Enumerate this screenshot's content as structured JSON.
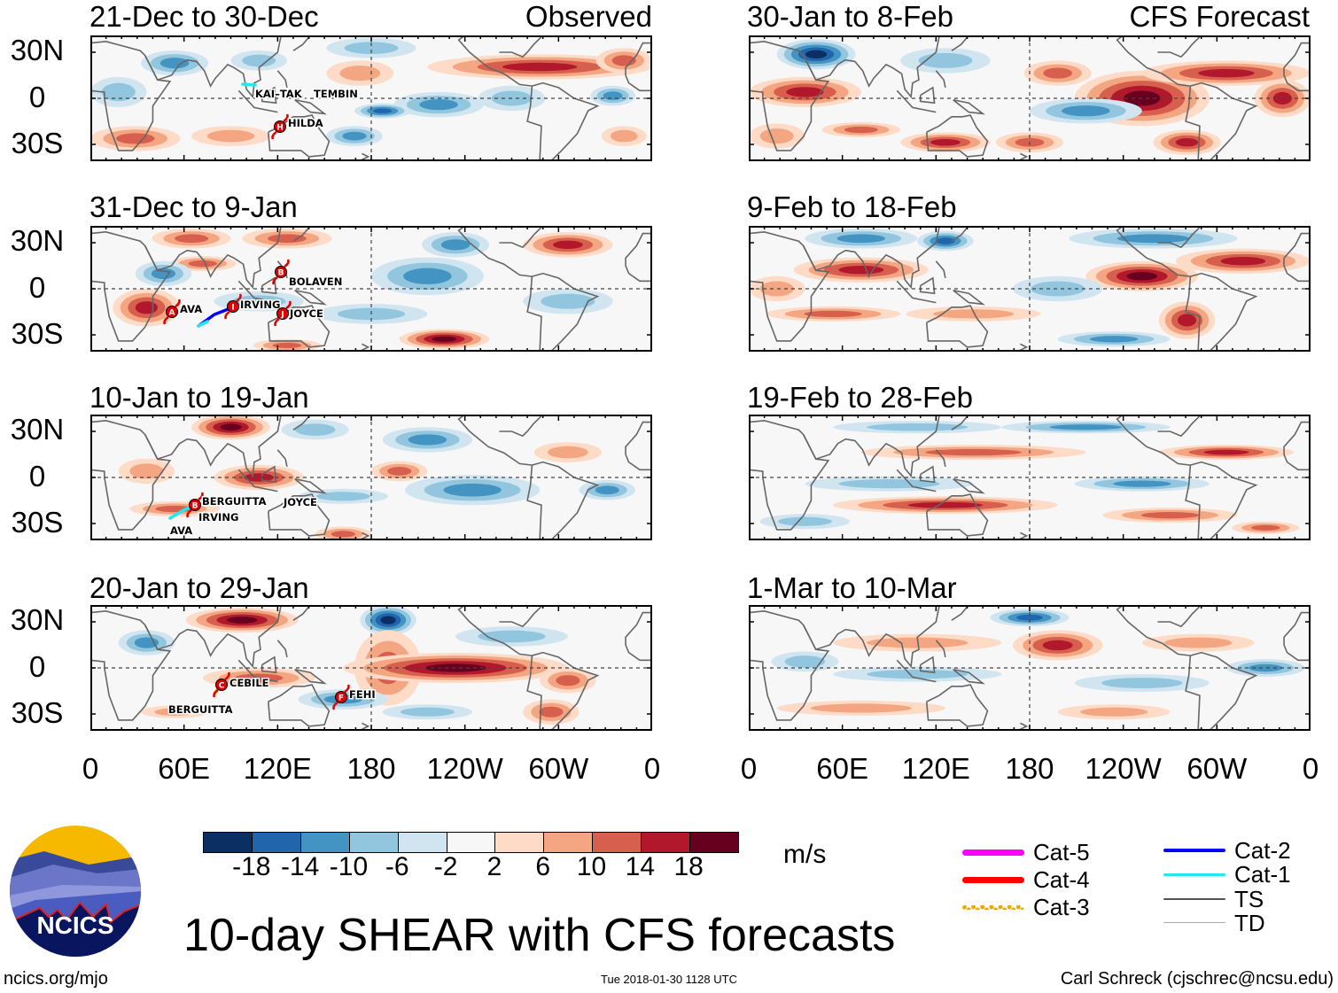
{
  "colors": {
    "scale": [
      "#0b2f63",
      "#2166ac",
      "#4393c3",
      "#92c5de",
      "#d1e5f0",
      "#f7f7f7",
      "#fddbc7",
      "#f4a582",
      "#d6604d",
      "#b2182b",
      "#67001f"
    ],
    "coast": "#666666"
  },
  "panels": {
    "observed_label": "Observed",
    "forecast_label": "CFS Forecast",
    "left": [
      {
        "title": "21-Dec to 30-Dec",
        "storms": [
          {
            "name": "KAI–TAK",
            "letter": ""
          },
          {
            "name": "TEMBIN",
            "letter": ""
          },
          {
            "name": "HILDA",
            "letter": "H"
          }
        ]
      },
      {
        "title": "31-Dec to 9-Jan",
        "storms": [
          {
            "name": "BOLAVEN",
            "letter": "B"
          },
          {
            "name": "AVA",
            "letter": "A"
          },
          {
            "name": "IRVING",
            "letter": "I"
          },
          {
            "name": "JOYCE",
            "letter": "J"
          }
        ]
      },
      {
        "title": "10-Jan to 19-Jan",
        "storms": [
          {
            "name": "BERGUITTA",
            "letter": "B"
          },
          {
            "name": "IRVING",
            "letter": ""
          },
          {
            "name": "AVA",
            "letter": ""
          },
          {
            "name": "JOYCE",
            "letter": ""
          }
        ]
      },
      {
        "title": "20-Jan to 29-Jan",
        "storms": [
          {
            "name": "CEBILE",
            "letter": "C"
          },
          {
            "name": "BERGUITTA",
            "letter": ""
          },
          {
            "name": "FEHI",
            "letter": "F"
          }
        ]
      }
    ],
    "right": [
      {
        "title": "30-Jan to 8-Feb"
      },
      {
        "title": "9-Feb to 18-Feb"
      },
      {
        "title": "19-Feb to 28-Feb"
      },
      {
        "title": "1-Mar to 10-Mar"
      }
    ]
  },
  "axes": {
    "y_ticks": [
      "30N",
      "0",
      "30S"
    ],
    "x_ticks": [
      "0",
      "60E",
      "120E",
      "180",
      "120W",
      "60W",
      "0"
    ]
  },
  "colorbar": {
    "labels": [
      "-18",
      "-14",
      "-10",
      "-6",
      "-2",
      "2",
      "6",
      "10",
      "14",
      "18"
    ],
    "units": "m/s"
  },
  "legend": [
    {
      "label": "Cat-5",
      "color": "#ff00ff"
    },
    {
      "label": "Cat-4",
      "color": "#ff0000"
    },
    {
      "label": "Cat-3",
      "color": "#f0a800"
    },
    {
      "label": "Cat-2",
      "color": "#0000ff"
    },
    {
      "label": "Cat-1",
      "color": "#22e8f0"
    },
    {
      "label": "TS",
      "color": "#555555"
    },
    {
      "label": "TD",
      "color": "#aaaaaa"
    }
  ],
  "title": "10-day SHEAR with CFS forecasts",
  "logo": {
    "text": "NCICS"
  },
  "footer": {
    "url": "ncics.org/mjo",
    "timestamp": "Tue 2018-01-30 1128 UTC",
    "credit": "Carl Schreck (cjschrec@ncsu.edu)"
  }
}
